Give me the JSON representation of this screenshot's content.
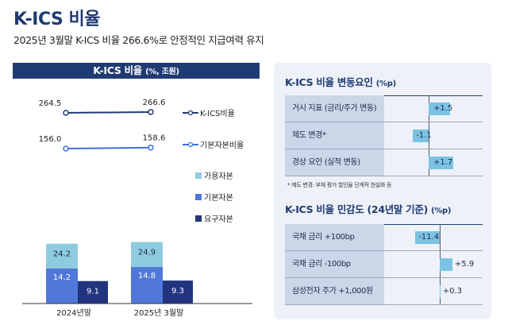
{
  "title": "K-ICS 비율",
  "subtitle": "2025년 3월말 K-ICS 비율 266.6%로 안정적인 지급여력 유지",
  "left_chart": {
    "header": "K-ICS 비율",
    "header_unit": "(%, 조원)",
    "line_legend": [
      "K-ICS비율",
      "기본자본비율"
    ],
    "bar_legend": [
      "가용자본",
      "기본자본",
      "요구자본"
    ],
    "colors": {
      "kics": "#1f3b73",
      "basic": "#3f73d6",
      "available": "#8fcbe0",
      "basic_cap": "#4f78d8",
      "required": "#22347f",
      "line_marker_fill": "#ffffff"
    }
  },
  "chart_data": [
    {
      "type": "line",
      "categories": [
        "2024년말",
        "2025년 3월말"
      ],
      "series": [
        {
          "name": "K-ICS비율",
          "values": [
            264.5,
            266.6
          ]
        },
        {
          "name": "기본자본비율",
          "values": [
            156.0,
            158.6
          ]
        }
      ],
      "value_labels": [
        [
          "264.5",
          "266.6"
        ],
        [
          "156.0",
          "158.6"
        ]
      ]
    },
    {
      "type": "bar",
      "categories": [
        "2024년말",
        "2025년 3월말"
      ],
      "series": [
        {
          "name": "가용자본",
          "values": [
            24.2,
            24.9
          ]
        },
        {
          "name": "기본자본",
          "values": [
            14.2,
            14.8
          ]
        },
        {
          "name": "요구자본",
          "values": [
            9.1,
            9.3
          ]
        }
      ],
      "value_labels": [
        [
          "24.2",
          "24.9"
        ],
        [
          "14.2",
          "14.8"
        ],
        [
          "9.1",
          "9.3"
        ]
      ]
    },
    {
      "type": "bar",
      "title": "K-ICS 비율 변동요인",
      "unit": "(%p)",
      "categories": [
        "거시 지표 (금리/주가 변동)",
        "제도 변경*",
        "경상 요인 (실적 변동)"
      ],
      "values": [
        1.5,
        -1.1,
        1.7
      ],
      "value_labels": [
        "+1.5",
        "-1.1",
        "+1.7"
      ],
      "note": "* 제도 변경: 부채 평가 할인율 단계적 현실화 등"
    },
    {
      "type": "bar",
      "title": "K-ICS 비율 민감도 (24년말 기준)",
      "unit": "(%p)",
      "categories": [
        "국채 금리 +100bp",
        "국채 금리 -100bp",
        "삼성전자 주가 +1,000원"
      ],
      "values": [
        -11.4,
        5.9,
        0.3
      ],
      "value_labels": [
        "-11.4",
        "+5.9",
        "+0.3"
      ]
    }
  ]
}
